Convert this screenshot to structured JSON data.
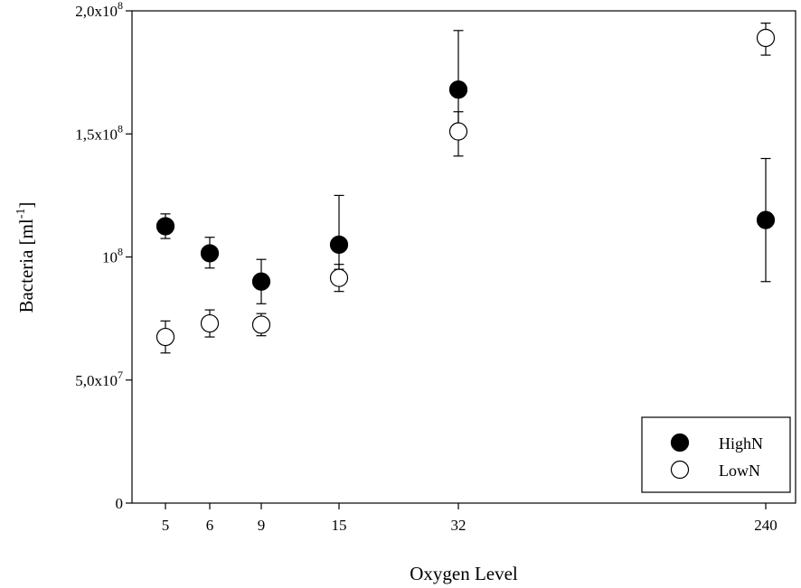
{
  "chart_data": {
    "type": "scatter",
    "xlabel": "Oxygen Level",
    "ylabel": "Bacteria [ml-1]",
    "ylabel_base": "Bacteria [ml",
    "ylabel_sup": "-1",
    "ylabel_end": "]",
    "categories": [
      "5",
      "6",
      "9",
      "15",
      "32",
      "240"
    ],
    "ylim": [
      0,
      200000000
    ],
    "yticks": [
      {
        "value": 0,
        "mantissa": "0",
        "exp": ""
      },
      {
        "value": 50000000,
        "mantissa": "5,0x10",
        "exp": "7"
      },
      {
        "value": 100000000,
        "mantissa": "10",
        "exp": "8"
      },
      {
        "value": 150000000,
        "mantissa": "1,5x10",
        "exp": "8"
      },
      {
        "value": 200000000,
        "mantissa": "2,0x10",
        "exp": "8"
      }
    ],
    "series": [
      {
        "name": "HighN",
        "fill": "#000000",
        "values": [
          112500000,
          101500000,
          90000000,
          105000000,
          168000000,
          115000000
        ],
        "err_low": [
          107500000,
          95500000,
          81000000,
          95000000,
          150000000,
          90000000
        ],
        "err_high": [
          117500000,
          108000000,
          99000000,
          125000000,
          192000000,
          140000000
        ]
      },
      {
        "name": "LowN",
        "fill": "#ffffff",
        "values": [
          67500000,
          73000000,
          72500000,
          91500000,
          151000000,
          189000000
        ],
        "err_low": [
          61000000,
          67500000,
          68000000,
          86000000,
          141000000,
          182000000
        ],
        "err_high": [
          74000000,
          78500000,
          77000000,
          97000000,
          159000000,
          195000000
        ]
      }
    ],
    "legend": {
      "position": "bottom-right",
      "entries": [
        "HighN",
        "LowN"
      ]
    },
    "grid": false
  }
}
